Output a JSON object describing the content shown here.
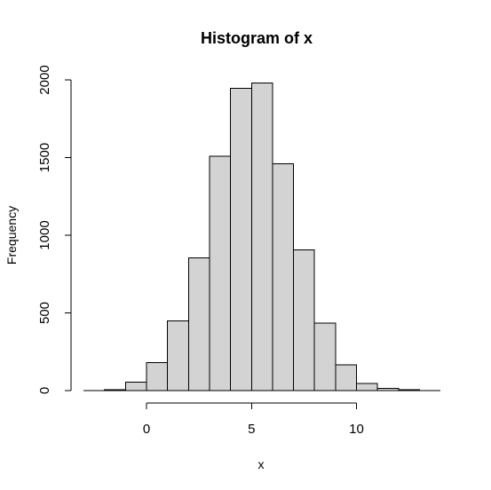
{
  "chart_data": {
    "type": "bar",
    "title": "Histogram of x",
    "xlabel": "x",
    "ylabel": "Frequency",
    "bin_edges": [
      -2,
      -1,
      0,
      1,
      2,
      3,
      4,
      5,
      6,
      7,
      8,
      9,
      10,
      11,
      12,
      13
    ],
    "values": [
      5,
      55,
      180,
      450,
      855,
      1510,
      1945,
      1980,
      1460,
      905,
      435,
      165,
      45,
      15,
      5
    ],
    "x_ticks": [
      0,
      5,
      10
    ],
    "x_tick_labels": [
      "0",
      "5",
      "10"
    ],
    "y_ticks": [
      0,
      500,
      1000,
      1500,
      2000
    ],
    "y_tick_labels": [
      "0",
      "500",
      "1000",
      "1500",
      "2000"
    ],
    "xlim": [
      -3,
      14
    ],
    "ylim": [
      0,
      2000
    ],
    "bar_color": "#d3d3d3",
    "grid": false,
    "legend": "none"
  }
}
